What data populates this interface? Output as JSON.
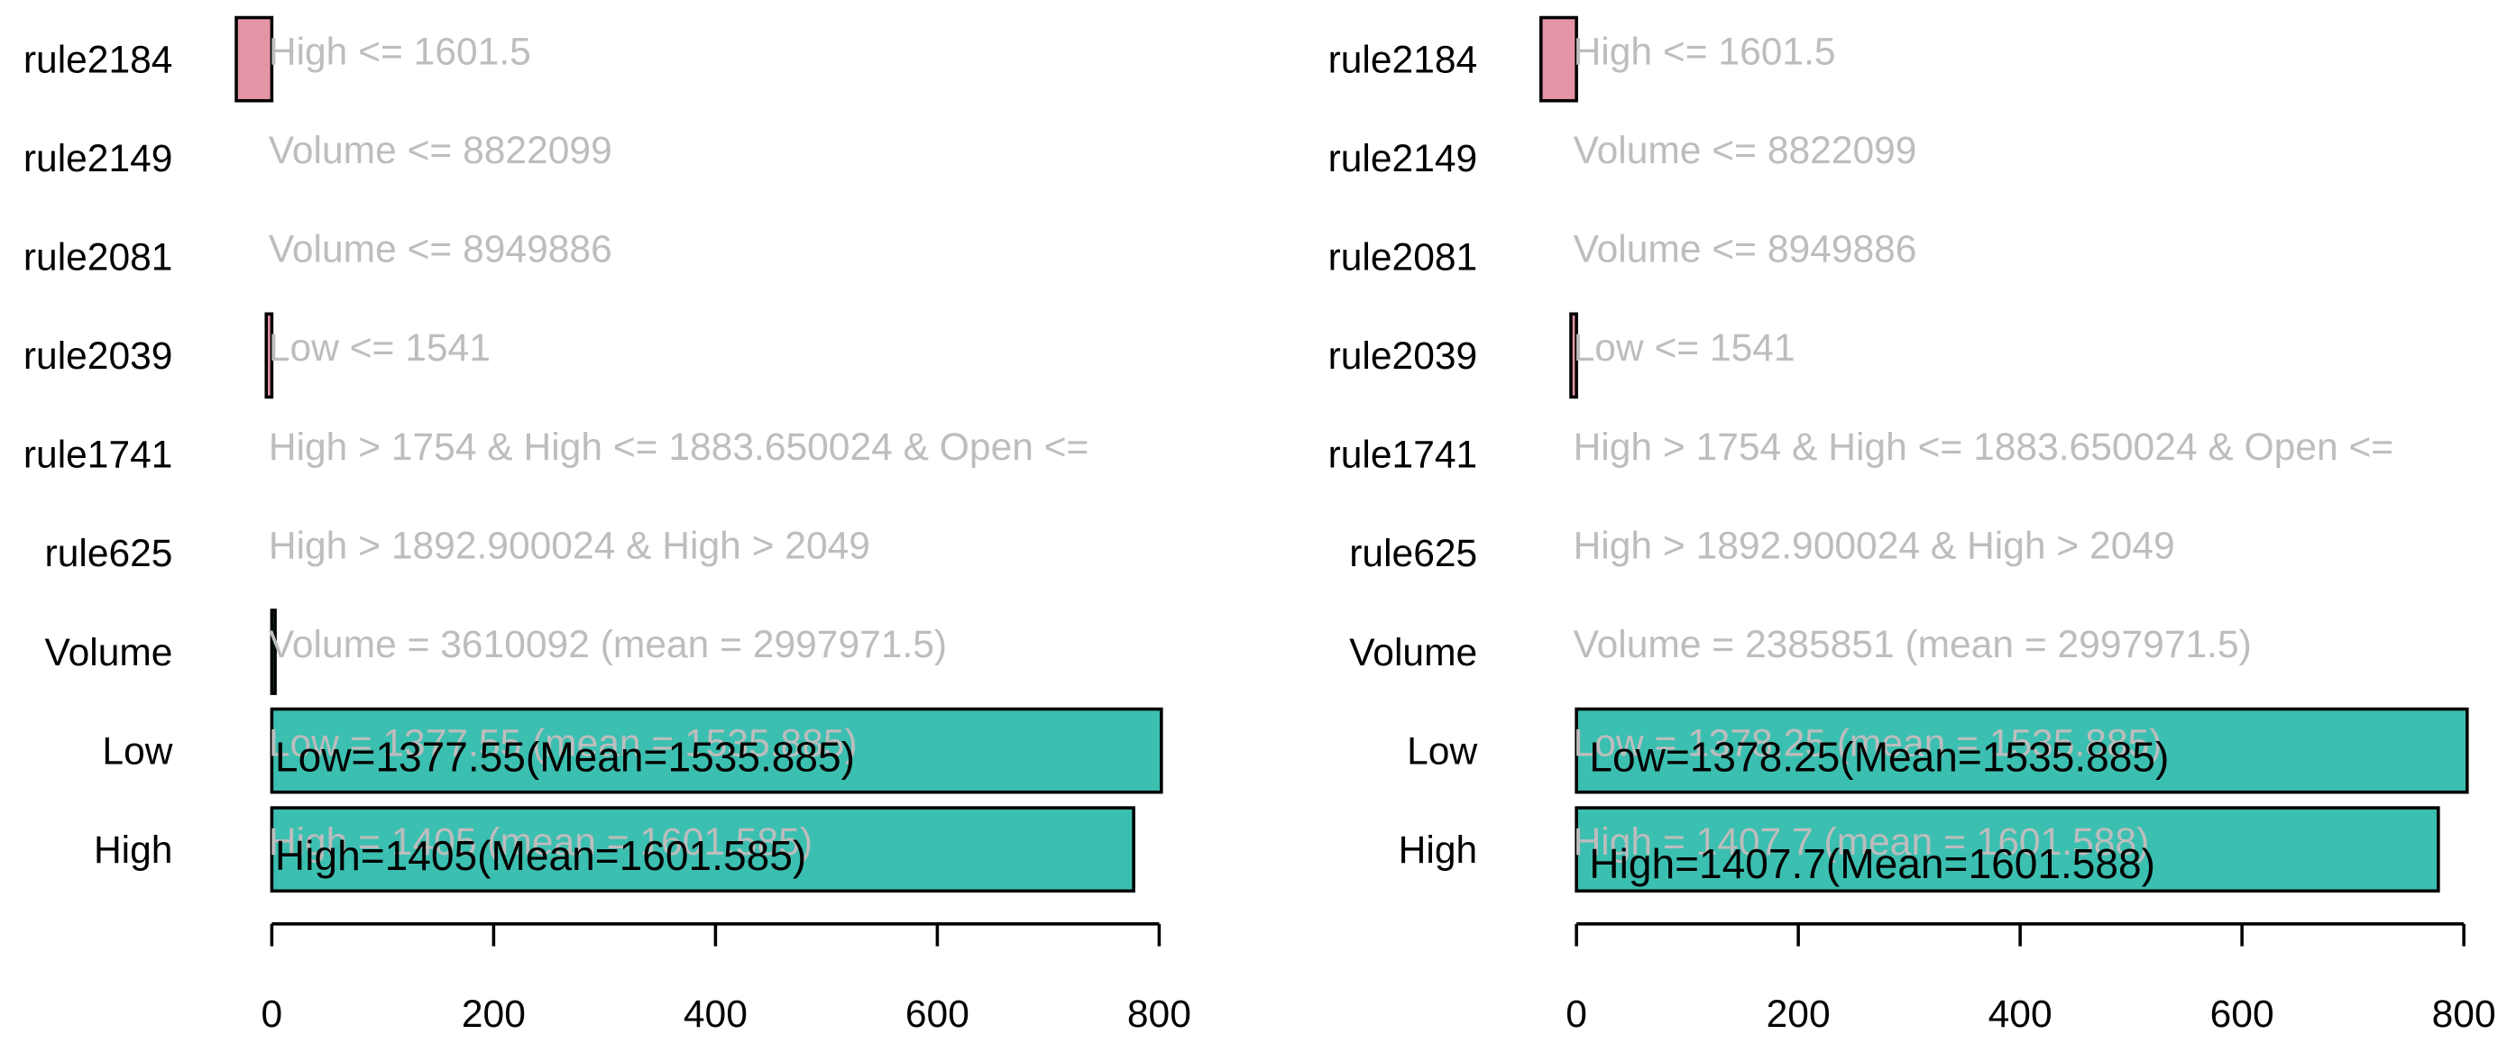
{
  "chart_data": [
    {
      "type": "barh",
      "categories": [
        "rule2184",
        "rule2149",
        "rule2081",
        "rule2039",
        "rule1741",
        "rule625",
        "Volume",
        "Low",
        "High"
      ],
      "values": [
        -32,
        0,
        0,
        -5,
        0,
        0,
        3,
        802,
        777
      ],
      "rule_labels": [
        "High <= 1601.5",
        "Volume <= 8822099",
        "Volume <= 8949886",
        "Low <= 1541",
        "High > 1754 & High <= 1883.650024 & Open <=",
        "High > 1892.900024 & High > 2049",
        "Volume = 3610092 (mean = 2997971.5)",
        "Low = 1377.55 (mean = 1535.885)",
        "High = 1405 (mean = 1601.585)"
      ],
      "bar_labels": [
        null,
        null,
        null,
        null,
        null,
        null,
        null,
        "Low=1377.55(Mean=1535.885)",
        "High=1405(Mean=1601.585)"
      ],
      "positive_color": "#3bbfb0",
      "negative_color": "#e495a5",
      "xlim": [
        -35,
        825
      ],
      "xticks": [
        0,
        200,
        400,
        600,
        800
      ]
    },
    {
      "type": "barh",
      "categories": [
        "rule2184",
        "rule2149",
        "rule2081",
        "rule2039",
        "rule1741",
        "rule625",
        "Volume",
        "Low",
        "High"
      ],
      "values": [
        -32,
        0,
        0,
        -5,
        0,
        0,
        0,
        803,
        777
      ],
      "rule_labels": [
        "High <= 1601.5",
        "Volume <= 8822099",
        "Volume <= 8949886",
        "Low <= 1541",
        "High > 1754 & High <= 1883.650024 & Open <=",
        "High > 1892.900024 & High > 2049",
        "Volume = 2385851 (mean = 2997971.5)",
        "Low = 1378.25 (mean = 1535.885)",
        "High = 1407.7 (mean = 1601.588)"
      ],
      "bar_labels": [
        null,
        null,
        null,
        null,
        null,
        null,
        null,
        "Low=1378.25(Mean=1535.885)",
        "High=1407.7(Mean=1601.588)"
      ],
      "positive_color": "#3bbfb0",
      "negative_color": "#e495a5",
      "xlim": [
        -35,
        825
      ],
      "xticks": [
        0,
        200,
        400,
        600,
        800
      ]
    }
  ]
}
